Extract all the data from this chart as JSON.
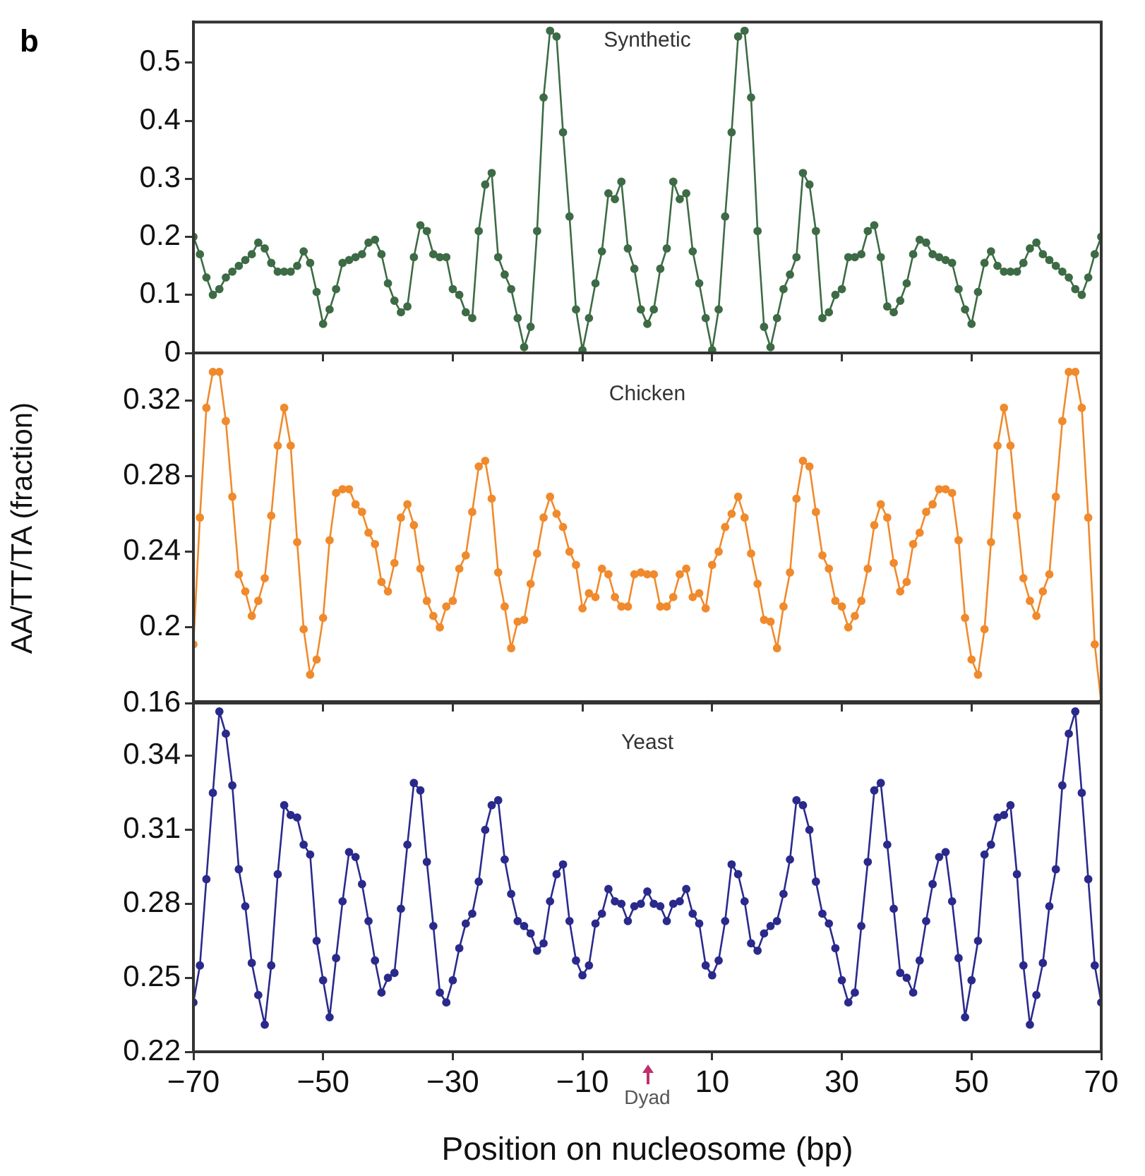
{
  "chart_data": [
    {
      "type": "line",
      "title": "Synthetic",
      "annotations": [
        "b"
      ],
      "x": [
        -70,
        -69,
        -68,
        -67,
        -66,
        -65,
        -64,
        -63,
        -62,
        -61,
        -60,
        -59,
        -58,
        -57,
        -56,
        -55,
        -54,
        -53,
        -52,
        -51,
        -50,
        -49,
        -48,
        -47,
        -46,
        -45,
        -44,
        -43,
        -42,
        -41,
        -40,
        -39,
        -38,
        -37,
        -36,
        -35,
        -34,
        -33,
        -32,
        -31,
        -30,
        -29,
        -28,
        -27,
        -26,
        -25,
        -24,
        -23,
        -22,
        -21,
        -20,
        -19,
        -18,
        -17,
        -16,
        -15,
        -14,
        -13,
        -12,
        -11,
        -10,
        -9,
        -8,
        -7,
        -6,
        -5,
        -4,
        -3,
        -2,
        -1,
        0,
        1,
        2,
        3,
        4,
        5,
        6,
        7,
        8,
        9,
        10,
        11,
        12,
        13,
        14,
        15,
        16,
        17,
        18,
        19,
        20,
        21,
        22,
        23,
        24,
        25,
        26,
        27,
        28,
        29,
        30,
        31,
        32,
        33,
        34,
        35,
        36,
        37,
        38,
        39,
        40,
        41,
        42,
        43,
        44,
        45,
        46,
        47,
        48,
        49,
        50,
        51,
        52,
        53,
        54,
        55,
        56,
        57,
        58,
        59,
        60,
        61,
        62,
        63,
        64,
        65,
        66,
        67,
        68,
        69,
        70
      ],
      "series": [
        {
          "color": "#3d6b45",
          "values": [
            0.2,
            0.17,
            0.13,
            0.1,
            0.11,
            0.13,
            0.14,
            0.15,
            0.16,
            0.17,
            0.19,
            0.18,
            0.155,
            0.14,
            0.14,
            0.14,
            0.15,
            0.175,
            0.155,
            0.105,
            0.05,
            0.075,
            0.11,
            0.155,
            0.16,
            0.165,
            0.17,
            0.19,
            0.195,
            0.17,
            0.12,
            0.09,
            0.07,
            0.08,
            0.165,
            0.22,
            0.21,
            0.17,
            0.165,
            0.165,
            0.11,
            0.1,
            0.07,
            0.06,
            0.21,
            0.29,
            0.31,
            0.165,
            0.135,
            0.11,
            0.06,
            0.01,
            0.045,
            0.21,
            0.44,
            0.555,
            0.545,
            0.38,
            0.235,
            0.075,
            0.005,
            0.06,
            0.12,
            0.175,
            0.275,
            0.265,
            0.295,
            0.18,
            0.145,
            0.075,
            0.05,
            0.075,
            0.145,
            0.18,
            0.295,
            0.265,
            0.275,
            0.175,
            0.12,
            0.06,
            0.005,
            0.075,
            0.235,
            0.38,
            0.545,
            0.555,
            0.44,
            0.21,
            0.045,
            0.01,
            0.06,
            0.11,
            0.135,
            0.165,
            0.31,
            0.29,
            0.21,
            0.06,
            0.07,
            0.1,
            0.11,
            0.165,
            0.165,
            0.17,
            0.21,
            0.22,
            0.165,
            0.08,
            0.07,
            0.09,
            0.12,
            0.17,
            0.195,
            0.19,
            0.17,
            0.165,
            0.16,
            0.155,
            0.11,
            0.075,
            0.05,
            0.105,
            0.155,
            0.175,
            0.15,
            0.14,
            0.14,
            0.14,
            0.155,
            0.18,
            0.19,
            0.17,
            0.16,
            0.15,
            0.14,
            0.13,
            0.11,
            0.1,
            0.13,
            0.17,
            0.2
          ]
        }
      ],
      "xlim": [
        -70,
        70
      ],
      "xticks": [
        -70,
        -50,
        -30,
        -10,
        10,
        30,
        50,
        70
      ],
      "ylim": [
        0,
        0.57
      ],
      "yticks": [
        0,
        0.1,
        0.2,
        0.3,
        0.4,
        0.5
      ],
      "marker": "circle",
      "tick_labels": "y"
    },
    {
      "type": "line",
      "title": "Chicken",
      "ylabel": "AA/TT/TA (fraction)",
      "x": [
        -70,
        -69,
        -68,
        -67,
        -66,
        -65,
        -64,
        -63,
        -62,
        -61,
        -60,
        -59,
        -58,
        -57,
        -56,
        -55,
        -54,
        -53,
        -52,
        -51,
        -50,
        -49,
        -48,
        -47,
        -46,
        -45,
        -44,
        -43,
        -42,
        -41,
        -40,
        -39,
        -38,
        -37,
        -36,
        -35,
        -34,
        -33,
        -32,
        -31,
        -30,
        -29,
        -28,
        -27,
        -26,
        -25,
        -24,
        -23,
        -22,
        -21,
        -20,
        -19,
        -18,
        -17,
        -16,
        -15,
        -14,
        -13,
        -12,
        -11,
        -10,
        -9,
        -8,
        -7,
        -6,
        -5,
        -4,
        -3,
        -2,
        -1,
        0,
        1,
        2,
        3,
        4,
        5,
        6,
        7,
        8,
        9,
        10,
        11,
        12,
        13,
        14,
        15,
        16,
        17,
        18,
        19,
        20,
        21,
        22,
        23,
        24,
        25,
        26,
        27,
        28,
        29,
        30,
        31,
        32,
        33,
        34,
        35,
        36,
        37,
        38,
        39,
        40,
        41,
        42,
        43,
        44,
        45,
        46,
        47,
        48,
        49,
        50,
        51,
        52,
        53,
        54,
        55,
        56,
        57,
        58,
        59,
        60,
        61,
        62,
        63,
        64,
        65,
        66,
        67,
        68,
        69,
        70
      ],
      "series": [
        {
          "color": "#f08a2c",
          "values": [
            0.191,
            0.258,
            0.316,
            0.335,
            0.335,
            0.309,
            0.269,
            0.228,
            0.219,
            0.206,
            0.214,
            0.226,
            0.259,
            0.296,
            0.316,
            0.296,
            0.245,
            0.199,
            0.175,
            0.183,
            0.205,
            0.246,
            0.271,
            0.273,
            0.273,
            0.265,
            0.261,
            0.25,
            0.244,
            0.224,
            0.219,
            0.234,
            0.258,
            0.265,
            0.254,
            0.231,
            0.214,
            0.206,
            0.2,
            0.211,
            0.214,
            0.231,
            0.238,
            0.261,
            0.285,
            0.288,
            0.268,
            0.229,
            0.211,
            0.189,
            0.203,
            0.204,
            0.223,
            0.239,
            0.258,
            0.269,
            0.26,
            0.253,
            0.24,
            0.233,
            0.21,
            0.218,
            0.216,
            0.231,
            0.228,
            0.216,
            0.211,
            0.211,
            0.228,
            0.229,
            0.228,
            0.228,
            0.211,
            0.211,
            0.216,
            0.228,
            0.231,
            0.216,
            0.218,
            0.21,
            0.233,
            0.24,
            0.253,
            0.26,
            0.269,
            0.258,
            0.239,
            0.223,
            0.204,
            0.203,
            0.189,
            0.211,
            0.229,
            0.268,
            0.288,
            0.285,
            0.261,
            0.238,
            0.231,
            0.214,
            0.211,
            0.2,
            0.206,
            0.214,
            0.231,
            0.254,
            0.265,
            0.258,
            0.234,
            0.219,
            0.224,
            0.244,
            0.25,
            0.261,
            0.265,
            0.273,
            0.273,
            0.271,
            0.246,
            0.205,
            0.183,
            0.175,
            0.199,
            0.245,
            0.296,
            0.316,
            0.296,
            0.259,
            0.226,
            0.214,
            0.206,
            0.219,
            0.228,
            0.269,
            0.309,
            0.335,
            0.335,
            0.316,
            0.258,
            0.191,
            0.16
          ]
        }
      ],
      "xlim": [
        -70,
        70
      ],
      "xticks": [
        -70,
        -50,
        -30,
        -10,
        10,
        30,
        50,
        70
      ],
      "ylim": [
        0.16,
        0.345
      ],
      "yticks": [
        0.16,
        0.2,
        0.24,
        0.28,
        0.32
      ],
      "marker": "circle",
      "tick_labels": "y"
    },
    {
      "type": "line",
      "title": "Yeast",
      "xlabel": "Position on nucleosome (bp)",
      "annotations": [
        "Dyad"
      ],
      "x": [
        -70,
        -69,
        -68,
        -67,
        -66,
        -65,
        -64,
        -63,
        -62,
        -61,
        -60,
        -59,
        -58,
        -57,
        -56,
        -55,
        -54,
        -53,
        -52,
        -51,
        -50,
        -49,
        -48,
        -47,
        -46,
        -45,
        -44,
        -43,
        -42,
        -41,
        -40,
        -39,
        -38,
        -37,
        -36,
        -35,
        -34,
        -33,
        -32,
        -31,
        -30,
        -29,
        -28,
        -27,
        -26,
        -25,
        -24,
        -23,
        -22,
        -21,
        -20,
        -19,
        -18,
        -17,
        -16,
        -15,
        -14,
        -13,
        -12,
        -11,
        -10,
        -9,
        -8,
        -7,
        -6,
        -5,
        -4,
        -3,
        -2,
        -1,
        0,
        1,
        2,
        3,
        4,
        5,
        6,
        7,
        8,
        9,
        10,
        11,
        12,
        13,
        14,
        15,
        16,
        17,
        18,
        19,
        20,
        21,
        22,
        23,
        24,
        25,
        26,
        27,
        28,
        29,
        30,
        31,
        32,
        33,
        34,
        35,
        36,
        37,
        38,
        39,
        40,
        41,
        42,
        43,
        44,
        45,
        46,
        47,
        48,
        49,
        50,
        51,
        52,
        53,
        54,
        55,
        56,
        57,
        58,
        59,
        60,
        61,
        62,
        63,
        64,
        65,
        66,
        67,
        68,
        69,
        70
      ],
      "series": [
        {
          "color": "#2a2a8c",
          "values": [
            0.24,
            0.255,
            0.29,
            0.325,
            0.358,
            0.349,
            0.328,
            0.294,
            0.279,
            0.256,
            0.243,
            0.231,
            0.255,
            0.292,
            0.32,
            0.316,
            0.315,
            0.304,
            0.3,
            0.265,
            0.249,
            0.234,
            0.258,
            0.281,
            0.301,
            0.299,
            0.288,
            0.273,
            0.257,
            0.244,
            0.25,
            0.252,
            0.278,
            0.304,
            0.329,
            0.326,
            0.297,
            0.271,
            0.244,
            0.24,
            0.249,
            0.262,
            0.272,
            0.276,
            0.289,
            0.31,
            0.32,
            0.322,
            0.298,
            0.284,
            0.273,
            0.271,
            0.268,
            0.261,
            0.264,
            0.281,
            0.292,
            0.296,
            0.273,
            0.257,
            0.251,
            0.255,
            0.272,
            0.276,
            0.286,
            0.281,
            0.28,
            0.273,
            0.279,
            0.28,
            0.285,
            0.28,
            0.279,
            0.273,
            0.28,
            0.281,
            0.286,
            0.276,
            0.272,
            0.255,
            0.251,
            0.257,
            0.273,
            0.296,
            0.292,
            0.281,
            0.264,
            0.261,
            0.268,
            0.271,
            0.273,
            0.284,
            0.298,
            0.322,
            0.32,
            0.31,
            0.289,
            0.276,
            0.272,
            0.262,
            0.249,
            0.24,
            0.244,
            0.271,
            0.297,
            0.326,
            0.329,
            0.304,
            0.278,
            0.252,
            0.25,
            0.244,
            0.257,
            0.273,
            0.288,
            0.299,
            0.301,
            0.281,
            0.258,
            0.234,
            0.249,
            0.265,
            0.3,
            0.304,
            0.315,
            0.316,
            0.32,
            0.292,
            0.255,
            0.231,
            0.243,
            0.256,
            0.279,
            0.294,
            0.328,
            0.349,
            0.358,
            0.325,
            0.29,
            0.255,
            0.24
          ]
        }
      ],
      "xlim": [
        -70,
        70
      ],
      "xticks": [
        {
          "value": -70,
          "label": "−70"
        },
        {
          "value": -50,
          "label": "−50"
        },
        {
          "value": -30,
          "label": "−30"
        },
        {
          "value": -10,
          "label": "−10"
        },
        10,
        30,
        50,
        70
      ],
      "ylim": [
        0.22,
        0.362
      ],
      "yticks": [
        0.22,
        0.25,
        0.28,
        0.31,
        0.34
      ],
      "marker": "circle"
    }
  ]
}
